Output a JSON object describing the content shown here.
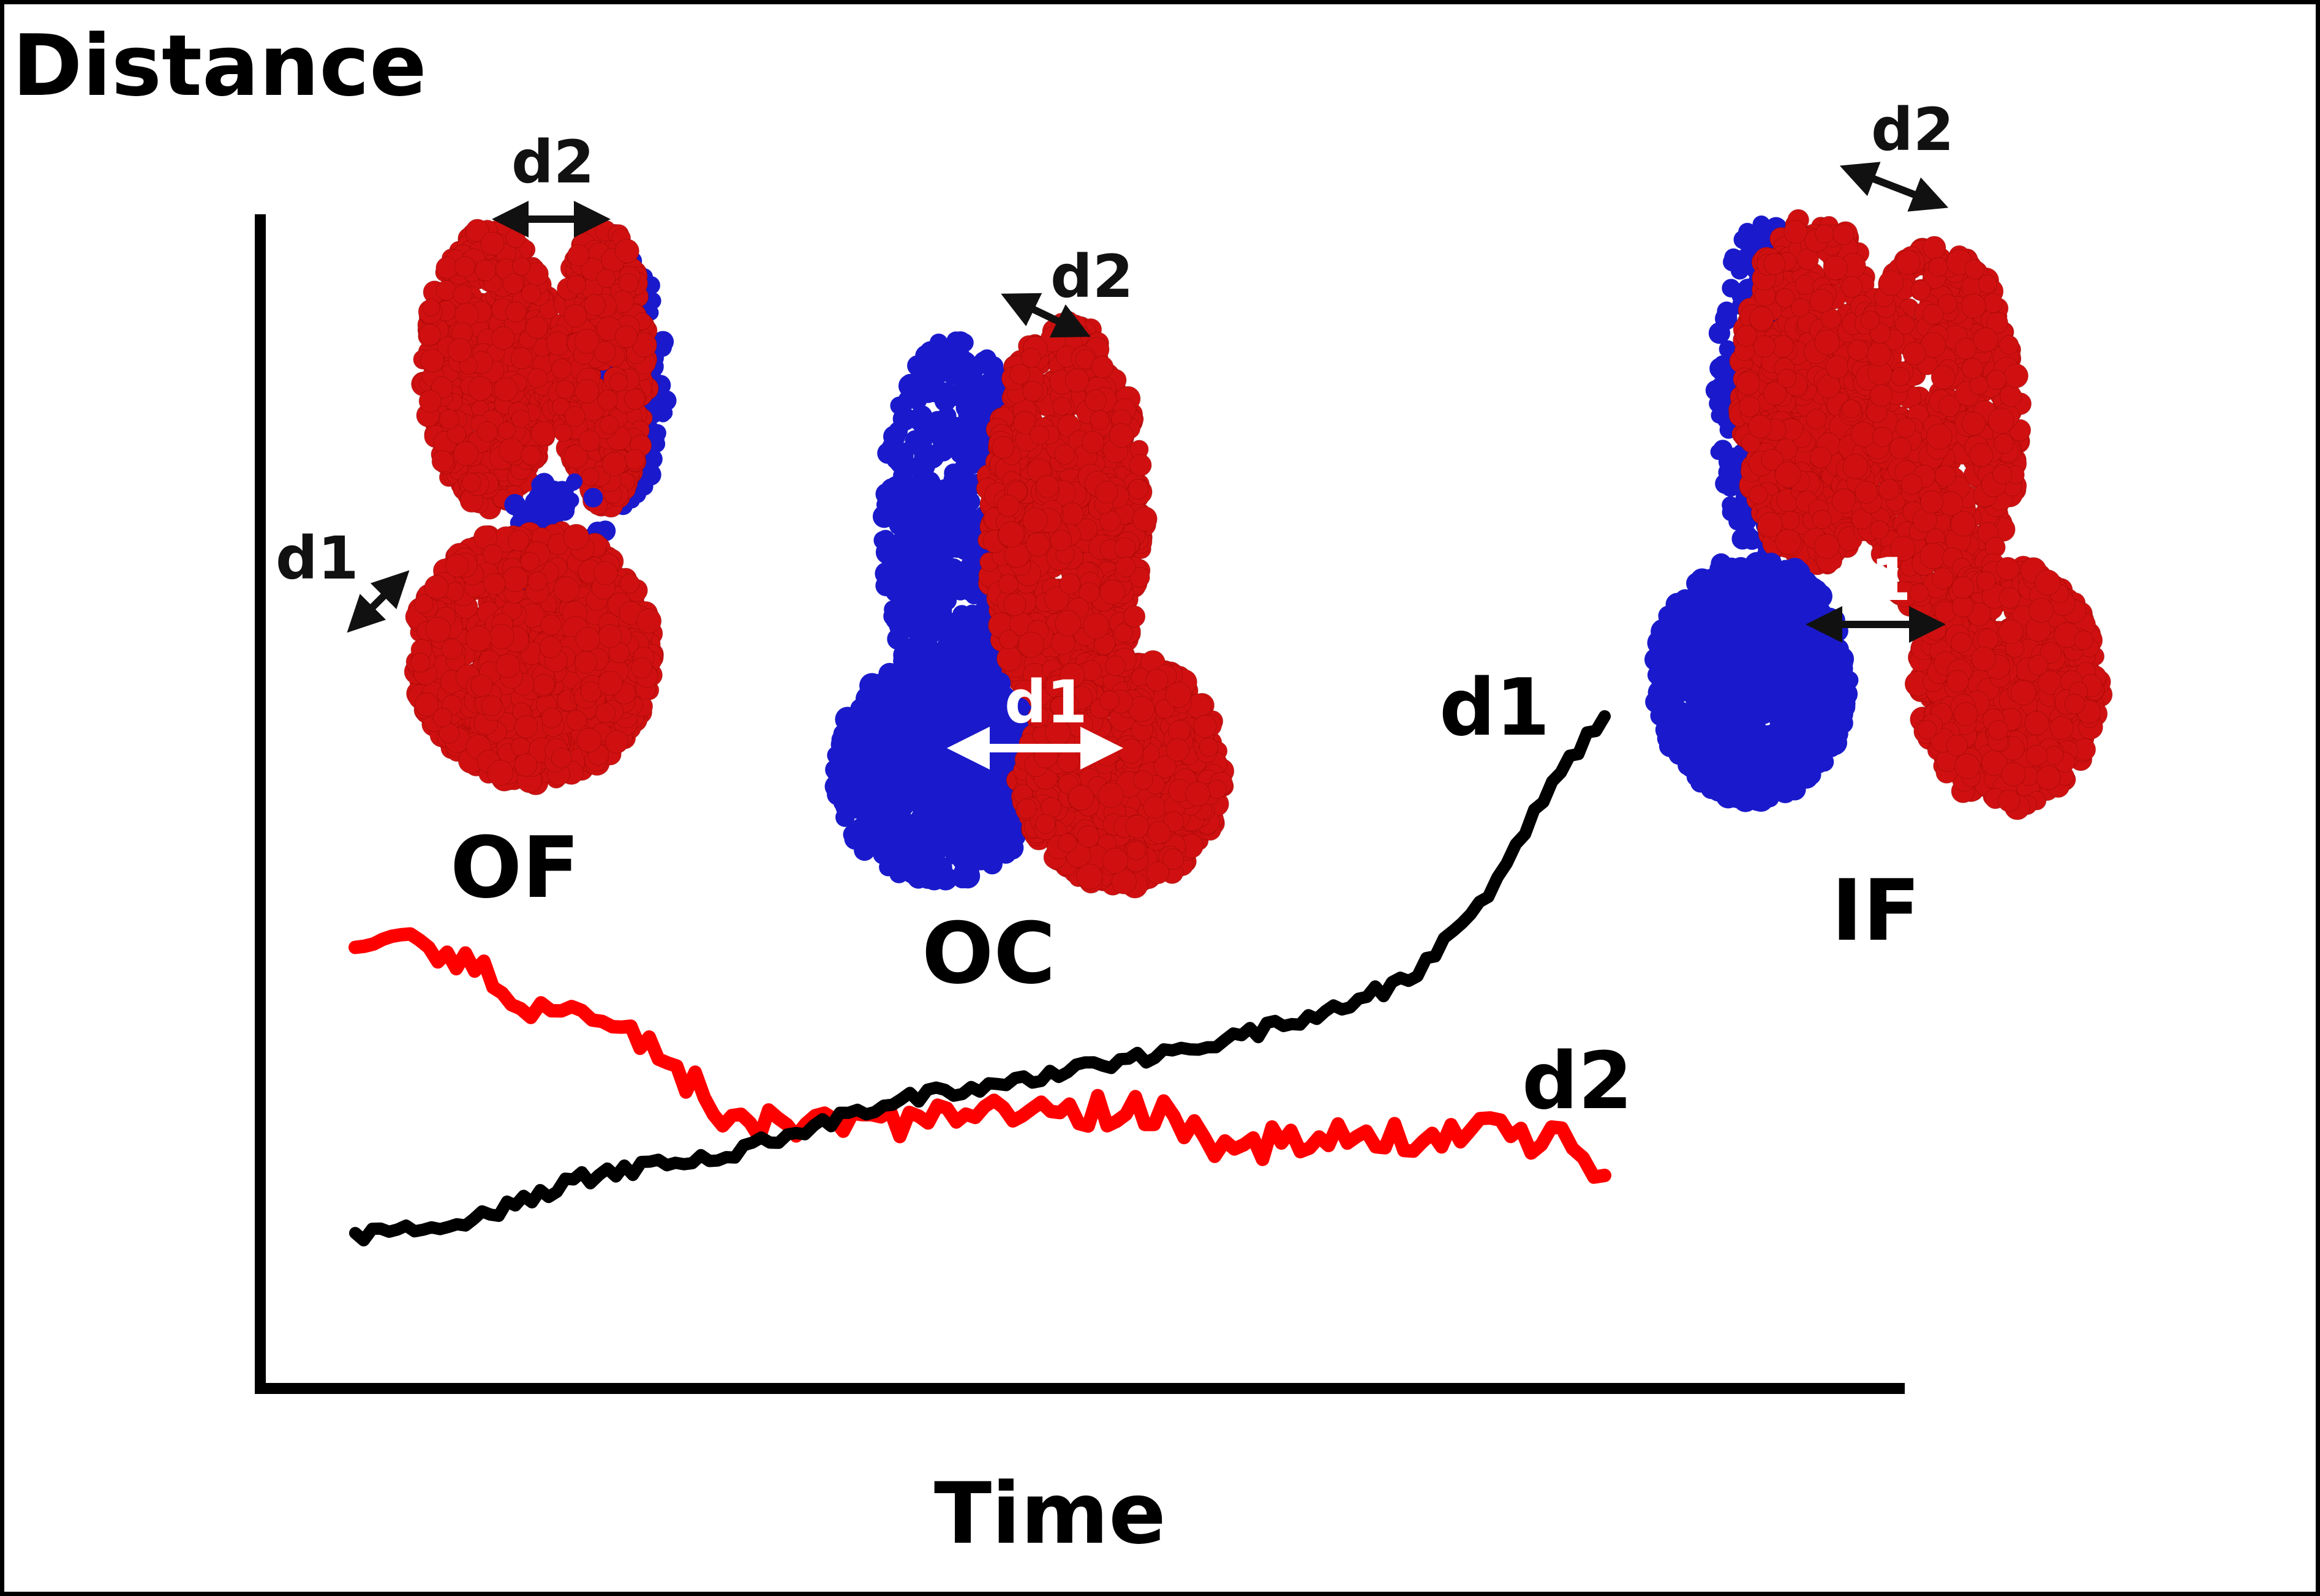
{
  "axes": {
    "y_label": "Distance",
    "x_label": "Time"
  },
  "states": [
    {
      "label": "OF",
      "d1_label": "d1",
      "d2_label": "d2"
    },
    {
      "label": "OC",
      "d1_label": "d1",
      "d2_label": "d2"
    },
    {
      "label": "IF",
      "d1_label": "d1",
      "d2_label": "d2"
    }
  ],
  "curves": [
    {
      "label": "d1",
      "color": "#000000",
      "trend": "increasing"
    },
    {
      "label": "d2",
      "color": "#ff0000",
      "trend": "decreasing"
    }
  ],
  "colors": {
    "domain_a": "#d01010",
    "domain_b": "#1a1acc",
    "arrow_dark": "#111111",
    "arrow_light": "#ffffff"
  }
}
